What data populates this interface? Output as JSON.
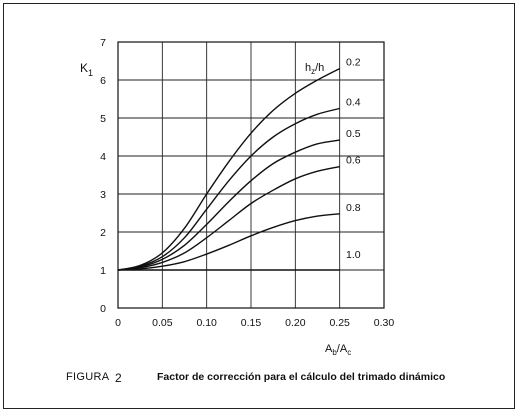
{
  "figure": {
    "label": "FIGURA",
    "number": "2",
    "title": "Factor de corrección para el cálculo del trimado dinámico"
  },
  "chart_data": {
    "type": "line",
    "title": "Factor de corrección para el cálculo del trimado dinámico",
    "xlabel": "Ab/Ac",
    "ylabel": "K1",
    "legend_title": "hz/h",
    "xlim": [
      0,
      0.3
    ],
    "ylim": [
      0,
      7
    ],
    "x_ticks": [
      "0",
      "0.05",
      "0.10",
      "0.15",
      "0.20",
      "0.25",
      "0.30"
    ],
    "y_ticks": [
      "0",
      "1",
      "2",
      "3",
      "4",
      "5",
      "6",
      "7"
    ],
    "grid": true,
    "series": [
      {
        "name": "0.2",
        "x": [
          0,
          0.025,
          0.05,
          0.075,
          0.1,
          0.125,
          0.15,
          0.175,
          0.2,
          0.225,
          0.25
        ],
        "y": [
          1.0,
          1.12,
          1.45,
          2.1,
          3.0,
          3.85,
          4.6,
          5.2,
          5.65,
          6.0,
          6.3
        ]
      },
      {
        "name": "0.4",
        "x": [
          0,
          0.025,
          0.05,
          0.075,
          0.1,
          0.125,
          0.15,
          0.175,
          0.2,
          0.225,
          0.25
        ],
        "y": [
          1.0,
          1.1,
          1.35,
          1.85,
          2.6,
          3.35,
          4.0,
          4.5,
          4.85,
          5.1,
          5.25
        ]
      },
      {
        "name": "0.5",
        "x": [
          0,
          0.025,
          0.05,
          0.075,
          0.1,
          0.125,
          0.15,
          0.175,
          0.2,
          0.225,
          0.25
        ],
        "y": [
          1.0,
          1.08,
          1.28,
          1.65,
          2.2,
          2.8,
          3.35,
          3.8,
          4.1,
          4.32,
          4.42
        ]
      },
      {
        "name": "0.6",
        "x": [
          0,
          0.025,
          0.05,
          0.075,
          0.1,
          0.125,
          0.15,
          0.175,
          0.2,
          0.225,
          0.25
        ],
        "y": [
          1.0,
          1.06,
          1.2,
          1.45,
          1.85,
          2.3,
          2.75,
          3.1,
          3.4,
          3.6,
          3.72
        ]
      },
      {
        "name": "0.8",
        "x": [
          0,
          0.025,
          0.05,
          0.075,
          0.1,
          0.125,
          0.15,
          0.175,
          0.2,
          0.225,
          0.25
        ],
        "y": [
          1.0,
          1.03,
          1.1,
          1.22,
          1.42,
          1.65,
          1.9,
          2.12,
          2.3,
          2.42,
          2.48
        ]
      },
      {
        "name": "1.0",
        "x": [
          0,
          0.25
        ],
        "y": [
          1.0,
          1.0
        ]
      }
    ]
  }
}
